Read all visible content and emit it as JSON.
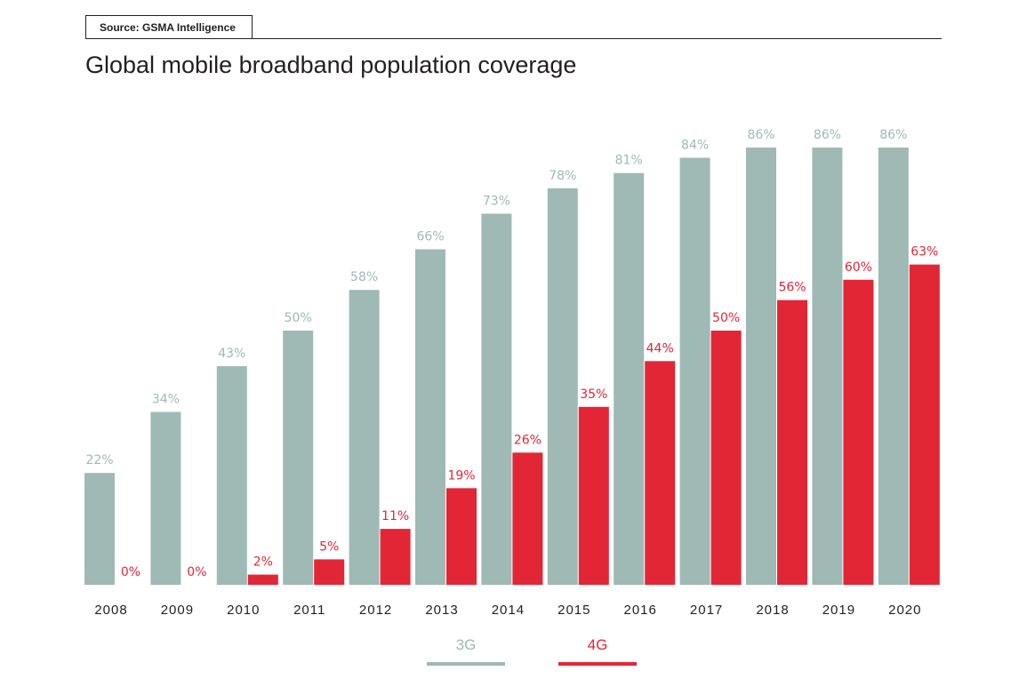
{
  "source": "Source: GSMA Intelligence",
  "colors": {
    "g3": "#9fb9b5",
    "g4": "#e32636",
    "text": "#231f20"
  },
  "chart_data": {
    "type": "bar",
    "title": "Global mobile broadband population coverage",
    "categories": [
      "2008",
      "2009",
      "2010",
      "2011",
      "2012",
      "2013",
      "2014",
      "2015",
      "2016",
      "2017",
      "2018",
      "2019",
      "2020"
    ],
    "series": [
      {
        "name": "3G",
        "values": [
          22,
          34,
          43,
          50,
          58,
          66,
          73,
          78,
          81,
          84,
          86,
          86,
          86
        ],
        "labels": [
          "22%",
          "34%",
          "43%",
          "50%",
          "58%",
          "66%",
          "73%",
          "78%",
          "81%",
          "84%",
          "86%",
          "86%",
          "86%"
        ]
      },
      {
        "name": "4G",
        "values": [
          0,
          0,
          2,
          5,
          11,
          19,
          26,
          35,
          44,
          50,
          56,
          60,
          63
        ],
        "labels": [
          "0%",
          "0%",
          "2%",
          "5%",
          "11%",
          "19%",
          "26%",
          "35%",
          "44%",
          "50%",
          "56%",
          "60%",
          "63%"
        ]
      }
    ],
    "legend": [
      "3G",
      "4G"
    ],
    "legend_position": "bottom",
    "grid": false
  }
}
